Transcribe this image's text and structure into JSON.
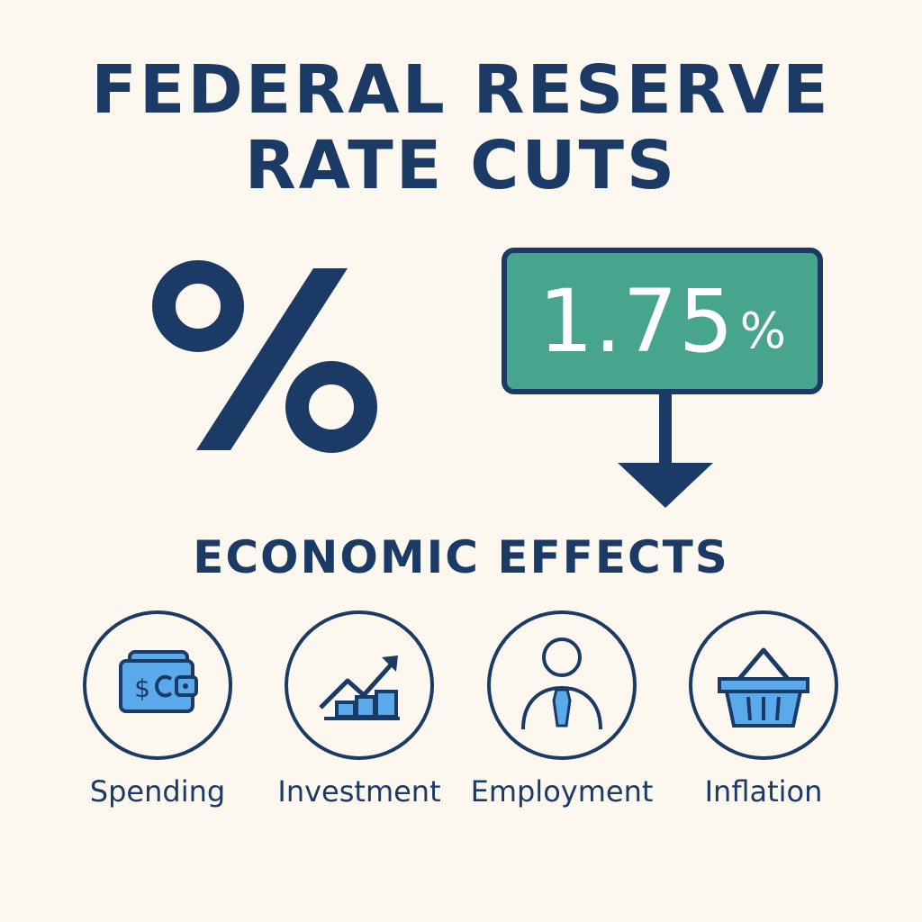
{
  "header": {
    "title_line1": "FEDERAL RESERVE",
    "title_line2": "RATE CUTS"
  },
  "rate": {
    "value": "1.75",
    "unit": "%",
    "direction_icon": "down-arrow-icon"
  },
  "percent_symbol": "percent-icon",
  "effects_section": {
    "title": "ECONOMIC EFFECTS",
    "items": [
      {
        "label": "Spending",
        "icon": "wallet-icon"
      },
      {
        "label": "Investment",
        "icon": "growth-chart-icon"
      },
      {
        "label": "Employment",
        "icon": "person-tie-icon"
      },
      {
        "label": "Inflation",
        "icon": "shopping-basket-icon"
      }
    ]
  },
  "colors": {
    "background": "#fdf8ef",
    "navy": "#1b3a66",
    "green": "#46a58c",
    "icon_blue": "#5aa9ea"
  }
}
